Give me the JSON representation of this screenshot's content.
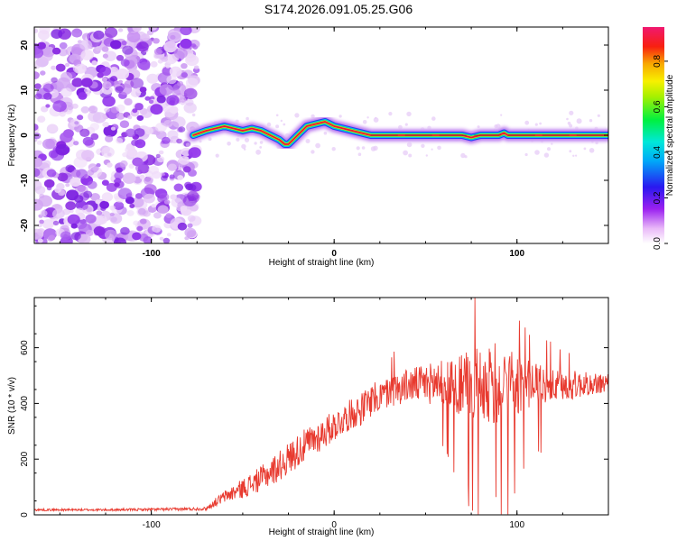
{
  "title": "S174.2026.091.05.25.G06",
  "colors": {
    "snr_line": "#e83a2f",
    "ridge_core": "#e8143c",
    "noise": "#8a2be2"
  },
  "chart_data": [
    {
      "type": "heatmap",
      "xlabel": "Height of straight line (km)",
      "ylabel": "Frequency (Hz)",
      "xlim": [
        -164,
        150
      ],
      "ylim": [
        -24,
        24
      ],
      "xticks": [
        -100,
        0,
        100
      ],
      "yticks": [
        -20,
        -10,
        0,
        10,
        20
      ],
      "noise_region_x": [
        -164,
        -77
      ],
      "ridge": {
        "x": [
          -77,
          -70,
          -65,
          -60,
          -55,
          -50,
          -45,
          -40,
          -35,
          -30,
          -27,
          -25,
          -20,
          -15,
          -10,
          -5,
          0,
          5,
          10,
          15,
          20,
          30,
          40,
          50,
          60,
          70,
          75,
          80,
          85,
          90,
          93,
          95,
          100,
          110,
          120,
          130,
          140,
          150
        ],
        "freq": [
          0,
          1,
          1.5,
          2,
          1.5,
          1,
          1.5,
          1,
          0,
          -1,
          -2,
          -2,
          0,
          2,
          2.5,
          3,
          2,
          1.5,
          1,
          0.5,
          0,
          0,
          0,
          0,
          0,
          0,
          -0.5,
          0,
          0,
          0,
          0.5,
          0,
          0,
          0,
          0,
          0,
          0,
          0
        ]
      },
      "colorbar": {
        "label": "Normalized spectral amplitude",
        "range": [
          0,
          0.95
        ],
        "ticks": [
          "0.0",
          "0.2",
          "0.4",
          "0.6",
          "0.8"
        ]
      }
    },
    {
      "type": "line",
      "xlabel": "Height of straight line (km)",
      "ylabel": "SNR (10 * v/v)",
      "xlim": [
        -164,
        150
      ],
      "ylim": [
        0,
        780
      ],
      "xticks": [
        -100,
        0,
        100
      ],
      "yticks": [
        0,
        200,
        400,
        600
      ],
      "envelope": {
        "x": [
          -164,
          -120,
          -90,
          -70,
          -65,
          -60,
          -50,
          -40,
          -30,
          -20,
          -10,
          0,
          10,
          15,
          20,
          30,
          40,
          50,
          60,
          70,
          80,
          90,
          100,
          110,
          120,
          130,
          140,
          150
        ],
        "mean": [
          18,
          18,
          20,
          22,
          45,
          65,
          95,
          130,
          175,
          230,
          275,
          320,
          365,
          380,
          410,
          440,
          465,
          470,
          475,
          465,
          470,
          470,
          470,
          465,
          460,
          465,
          470,
          470
        ],
        "spread": [
          4,
          4,
          5,
          6,
          15,
          22,
          35,
          45,
          55,
          60,
          60,
          55,
          55,
          60,
          60,
          55,
          60,
          70,
          85,
          110,
          140,
          150,
          130,
          80,
          60,
          55,
          40,
          40
        ]
      },
      "peak": {
        "x": 77,
        "y": 780
      }
    }
  ]
}
